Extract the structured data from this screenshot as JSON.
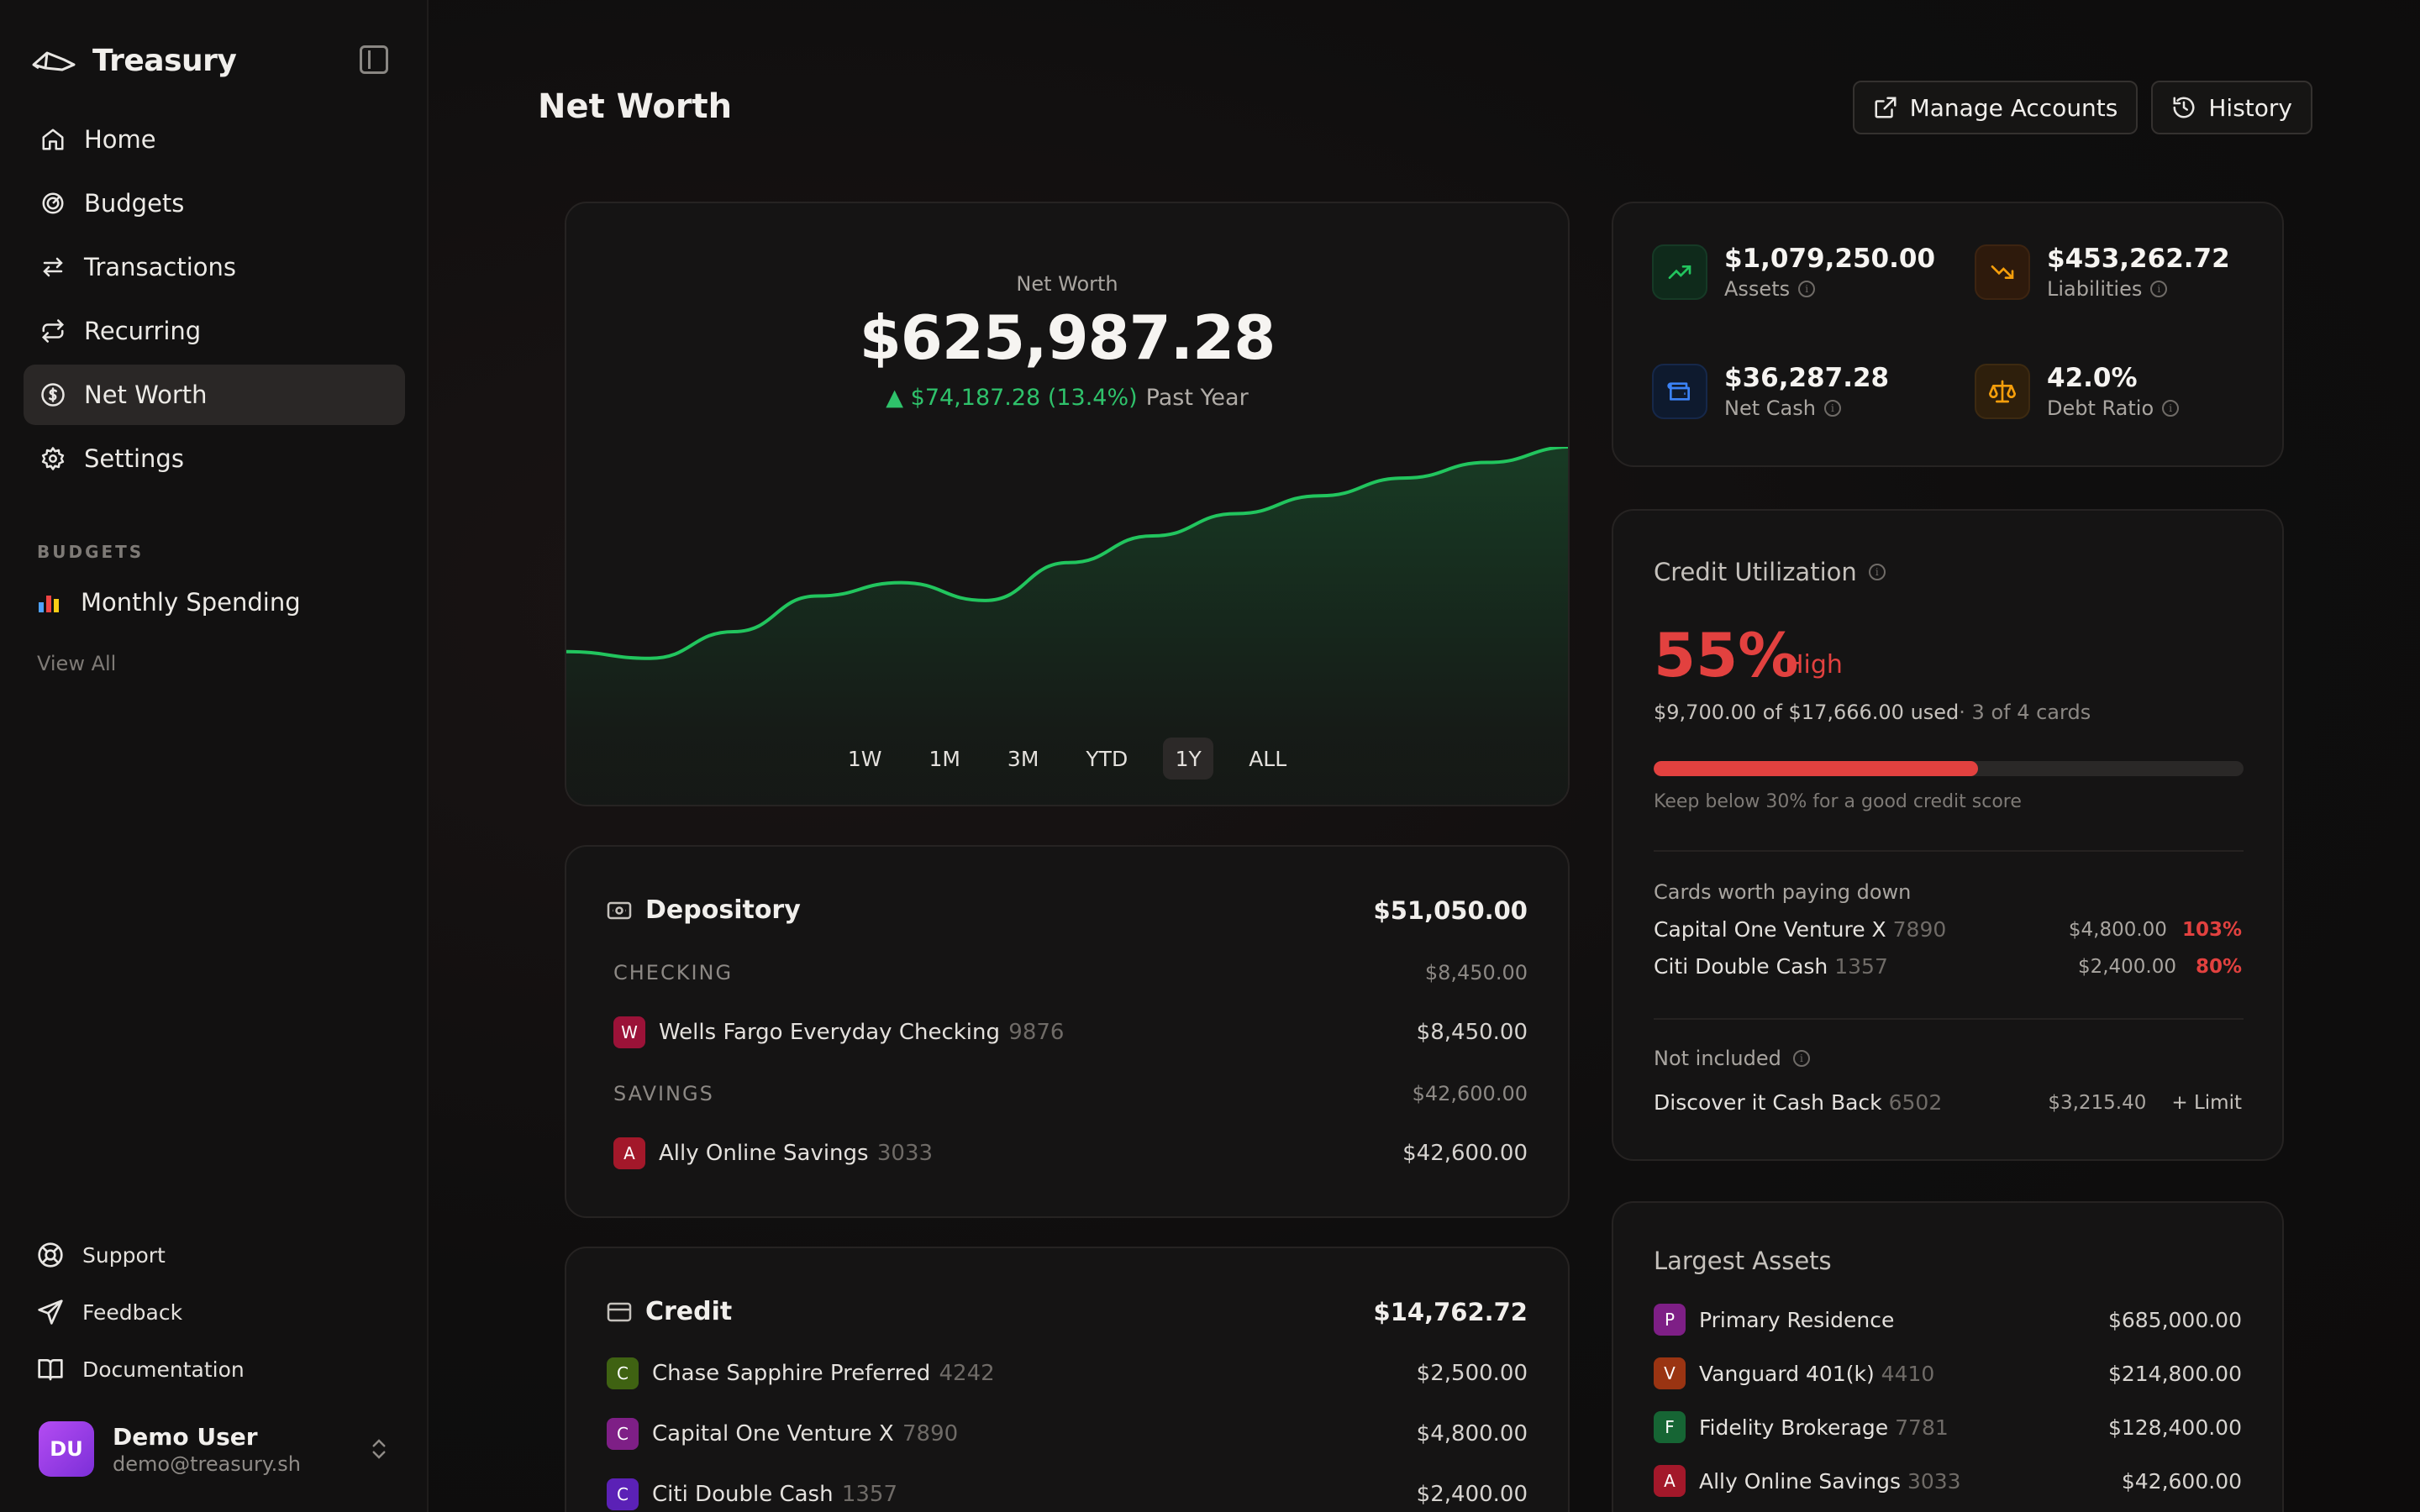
{
  "sidebar": {
    "brand": "Treasury",
    "nav": [
      {
        "label": "Home",
        "icon": "home-icon"
      },
      {
        "label": "Budgets",
        "icon": "target-icon"
      },
      {
        "label": "Transactions",
        "icon": "transfer-icon"
      },
      {
        "label": "Recurring",
        "icon": "repeat-icon"
      },
      {
        "label": "Net Worth",
        "icon": "dollar-circle-icon",
        "active": true
      },
      {
        "label": "Settings",
        "icon": "gear-icon"
      }
    ],
    "budgets_section": "BUDGETS",
    "budget_item": {
      "label": "Monthly Spending",
      "icon": "bar-chart-icon"
    },
    "view_all": "View All",
    "bottom_links": [
      {
        "label": "Support",
        "icon": "lifebuoy-icon"
      },
      {
        "label": "Feedback",
        "icon": "send-icon"
      },
      {
        "label": "Documentation",
        "icon": "book-icon"
      }
    ],
    "user": {
      "initials": "DU",
      "name": "Demo User",
      "email": "demo@treasury.sh"
    }
  },
  "header": {
    "title": "Net Worth",
    "manage_accounts": "Manage Accounts",
    "history": "History"
  },
  "net_worth": {
    "label": "Net Worth",
    "value": "$625,987.28",
    "change": "▲ $74,187.28 (13.4%)",
    "period": "Past Year",
    "ranges": [
      "1W",
      "1M",
      "3M",
      "YTD",
      "1Y",
      "ALL"
    ],
    "active_range": "1Y"
  },
  "chart_data": {
    "type": "area",
    "x": [
      0,
      1,
      2,
      3,
      4,
      5,
      6,
      7,
      8,
      9,
      10,
      11,
      12
    ],
    "values": [
      0.08,
      0.05,
      0.17,
      0.33,
      0.39,
      0.31,
      0.48,
      0.6,
      0.7,
      0.78,
      0.86,
      0.93,
      1.0
    ],
    "line_color": "#22c55e"
  },
  "depository": {
    "title": "Depository",
    "total": "$51,050.00",
    "groups": [
      {
        "label": "CHECKING",
        "total": "$8,450.00",
        "accounts": [
          {
            "initial": "W",
            "name": "Wells Fargo Everyday Checking",
            "mask": "9876",
            "amount": "$8,450.00",
            "color": "#9b1238"
          }
        ]
      },
      {
        "label": "SAVINGS",
        "total": "$42,600.00",
        "accounts": [
          {
            "initial": "A",
            "name": "Ally Online Savings",
            "mask": "3033",
            "amount": "$42,600.00",
            "color": "#a3182a"
          }
        ]
      }
    ]
  },
  "credit": {
    "title": "Credit",
    "total": "$14,762.72",
    "accounts": [
      {
        "initial": "C",
        "name": "Chase Sapphire Preferred",
        "mask": "4242",
        "amount": "$2,500.00",
        "color": "#3f6212"
      },
      {
        "initial": "C",
        "name": "Capital One Venture X",
        "mask": "7890",
        "amount": "$4,800.00",
        "color": "#7e1f86"
      },
      {
        "initial": "C",
        "name": "Citi Double Cash",
        "mask": "1357",
        "amount": "$2,400.00",
        "color": "#5b21b6"
      }
    ]
  },
  "stats": {
    "assets": {
      "value": "$1,079,250.00",
      "label": "Assets"
    },
    "liabilities": {
      "value": "$453,262.72",
      "label": "Liabilities"
    },
    "net_cash": {
      "value": "$36,287.28",
      "label": "Net Cash"
    },
    "debt_ratio": {
      "value": "42.0%",
      "label": "Debt Ratio"
    }
  },
  "utilization": {
    "title": "Credit Utilization",
    "percent": "55%",
    "level": "High",
    "fill_fraction": 0.55,
    "used": "$9,700.00 of $17,666.00 used",
    "cards": "· 3 of 4 cards",
    "hint": "Keep below 30% for a good credit score",
    "pay_down_title": "Cards worth paying down",
    "pay_down": [
      {
        "name": "Capital One Venture X",
        "mask": "7890",
        "balance": "$4,800.00",
        "pct": "103%"
      },
      {
        "name": "Citi Double Cash",
        "mask": "1357",
        "balance": "$2,400.00",
        "pct": "80%"
      }
    ],
    "not_included_title": "Not included",
    "not_included": [
      {
        "name": "Discover it Cash Back",
        "mask": "6502",
        "balance": "$3,215.40",
        "action": "+ Limit"
      }
    ]
  },
  "largest_assets": {
    "title": "Largest Assets",
    "items": [
      {
        "initial": "P",
        "name": "Primary Residence",
        "mask": "",
        "amount": "$685,000.00",
        "color": "#7e1f86"
      },
      {
        "initial": "V",
        "name": "Vanguard 401(k)",
        "mask": "4410",
        "amount": "$214,800.00",
        "color": "#9a3412"
      },
      {
        "initial": "F",
        "name": "Fidelity Brokerage",
        "mask": "7781",
        "amount": "$128,400.00",
        "color": "#166534"
      },
      {
        "initial": "A",
        "name": "Ally Online Savings",
        "mask": "3033",
        "amount": "$42,600.00",
        "color": "#a3182a"
      }
    ]
  }
}
